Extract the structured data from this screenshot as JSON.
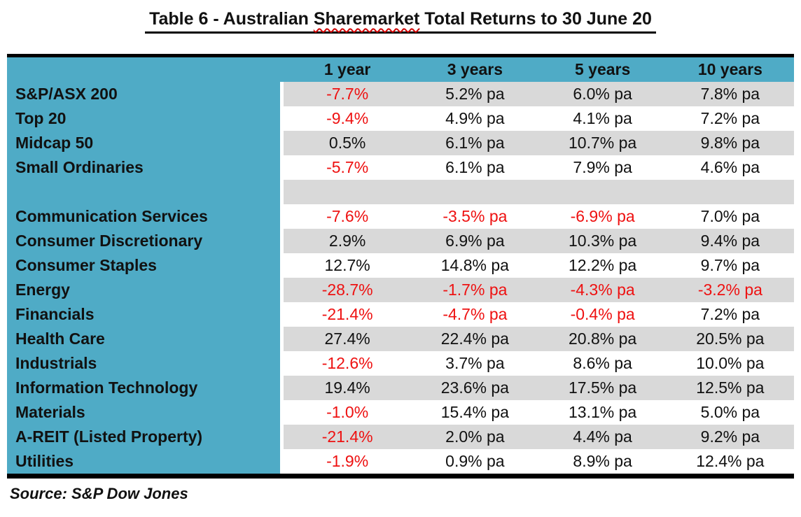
{
  "title": {
    "prefix": "Table 6 - Australian ",
    "highlight": "Sharemarket",
    "suffix": " Total Returns to 30 June 20"
  },
  "table": {
    "columns": [
      "1 year",
      "3 years",
      "5 years",
      "10 years"
    ],
    "rows": [
      {
        "label": "S&P/ASX 200",
        "cells": [
          {
            "text": "-7.7%",
            "neg": true
          },
          {
            "text": "5.2% pa",
            "neg": false
          },
          {
            "text": "6.0% pa",
            "neg": false
          },
          {
            "text": "7.8% pa",
            "neg": false
          }
        ]
      },
      {
        "label": "Top 20",
        "cells": [
          {
            "text": "-9.4%",
            "neg": true
          },
          {
            "text": "4.9% pa",
            "neg": false
          },
          {
            "text": "4.1% pa",
            "neg": false
          },
          {
            "text": "7.2% pa",
            "neg": false
          }
        ]
      },
      {
        "label": "Midcap 50",
        "cells": [
          {
            "text": "0.5%",
            "neg": false
          },
          {
            "text": "6.1% pa",
            "neg": false
          },
          {
            "text": "10.7% pa",
            "neg": false
          },
          {
            "text": "9.8% pa",
            "neg": false
          }
        ]
      },
      {
        "label": "Small Ordinaries",
        "cells": [
          {
            "text": "-5.7%",
            "neg": true
          },
          {
            "text": "6.1% pa",
            "neg": false
          },
          {
            "text": "7.9% pa",
            "neg": false
          },
          {
            "text": "4.6% pa",
            "neg": false
          }
        ]
      },
      {
        "label": "",
        "cells": [
          {
            "text": "",
            "neg": false
          },
          {
            "text": "",
            "neg": false
          },
          {
            "text": "",
            "neg": false
          },
          {
            "text": "",
            "neg": false
          }
        ]
      },
      {
        "label": "Communication Services",
        "cells": [
          {
            "text": "-7.6%",
            "neg": true
          },
          {
            "text": "-3.5% pa",
            "neg": true
          },
          {
            "text": "-6.9% pa",
            "neg": true
          },
          {
            "text": "7.0% pa",
            "neg": false
          }
        ]
      },
      {
        "label": "Consumer Discretionary",
        "cells": [
          {
            "text": "2.9%",
            "neg": false
          },
          {
            "text": "6.9% pa",
            "neg": false
          },
          {
            "text": "10.3% pa",
            "neg": false
          },
          {
            "text": "9.4% pa",
            "neg": false
          }
        ]
      },
      {
        "label": "Consumer Staples",
        "cells": [
          {
            "text": "12.7%",
            "neg": false
          },
          {
            "text": "14.8% pa",
            "neg": false
          },
          {
            "text": "12.2% pa",
            "neg": false
          },
          {
            "text": "9.7% pa",
            "neg": false
          }
        ]
      },
      {
        "label": "Energy",
        "cells": [
          {
            "text": "-28.7%",
            "neg": true
          },
          {
            "text": "-1.7% pa",
            "neg": true
          },
          {
            "text": "-4.3% pa",
            "neg": true
          },
          {
            "text": "-3.2% pa",
            "neg": true
          }
        ]
      },
      {
        "label": "Financials",
        "cells": [
          {
            "text": "-21.4%",
            "neg": true
          },
          {
            "text": "-4.7% pa",
            "neg": true
          },
          {
            "text": "-0.4% pa",
            "neg": true
          },
          {
            "text": "7.2% pa",
            "neg": false
          }
        ]
      },
      {
        "label": "Health Care",
        "cells": [
          {
            "text": "27.4%",
            "neg": false
          },
          {
            "text": "22.4% pa",
            "neg": false
          },
          {
            "text": "20.8% pa",
            "neg": false
          },
          {
            "text": "20.5% pa",
            "neg": false
          }
        ]
      },
      {
        "label": "Industrials",
        "cells": [
          {
            "text": "-12.6%",
            "neg": true
          },
          {
            "text": "3.7% pa",
            "neg": false
          },
          {
            "text": "8.6% pa",
            "neg": false
          },
          {
            "text": "10.0% pa",
            "neg": false
          }
        ]
      },
      {
        "label": "Information Technology",
        "cells": [
          {
            "text": "19.4%",
            "neg": false
          },
          {
            "text": "23.6% pa",
            "neg": false
          },
          {
            "text": "17.5% pa",
            "neg": false
          },
          {
            "text": "12.5% pa",
            "neg": false
          }
        ]
      },
      {
        "label": "Materials",
        "cells": [
          {
            "text": "-1.0%",
            "neg": true
          },
          {
            "text": "15.4% pa",
            "neg": false
          },
          {
            "text": "13.1% pa",
            "neg": false
          },
          {
            "text": "5.0% pa",
            "neg": false
          }
        ]
      },
      {
        "label": "A-REIT (Listed Property)",
        "cells": [
          {
            "text": "-21.4%",
            "neg": true
          },
          {
            "text": "2.0% pa",
            "neg": false
          },
          {
            "text": "4.4% pa",
            "neg": false
          },
          {
            "text": "9.2% pa",
            "neg": false
          }
        ]
      },
      {
        "label": "Utilities",
        "cells": [
          {
            "text": "-1.9%",
            "neg": true
          },
          {
            "text": "0.9% pa",
            "neg": false
          },
          {
            "text": "8.9% pa",
            "neg": false
          },
          {
            "text": "12.4% pa",
            "neg": false
          }
        ]
      }
    ]
  },
  "source": "Source: S&P Dow Jones",
  "colors": {
    "header_teal": "#4FABC6",
    "row_gray": "#D9D9D9",
    "negative_red": "#EE1111",
    "text_black": "#111111"
  }
}
